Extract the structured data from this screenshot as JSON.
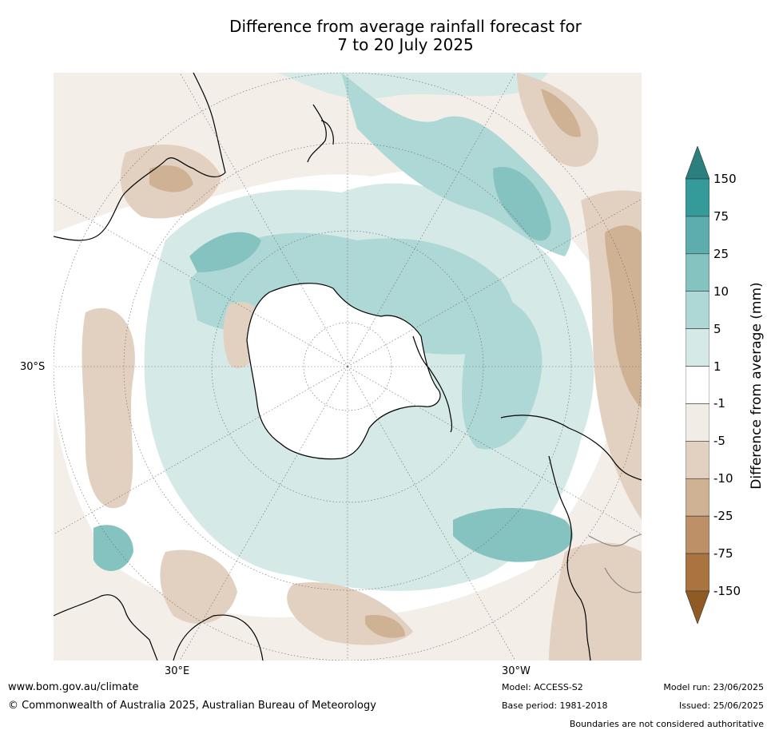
{
  "title": "Difference from average rainfall forecast for\n7 to 20 July 2025",
  "map": {
    "projection": "south polar stereographic",
    "labels": {
      "lat_30s": "30°S",
      "lon_30e": "30°E",
      "lon_30w": "30°W"
    }
  },
  "legend": {
    "title": "Difference from average (mm)",
    "ticks": [
      "150",
      "75",
      "25",
      "10",
      "5",
      "1",
      "-1",
      "-5",
      "-10",
      "-25",
      "-75",
      "-150"
    ],
    "colors": [
      "#2a7f7f",
      "#359a9a",
      "#5eadad",
      "#85c3c1",
      "#aed8d6",
      "#d5e9e7",
      "#ffffff",
      "#f2ece6",
      "#e2d1c0",
      "#cfb193",
      "#bd9068",
      "#aa7441",
      "#8f5a23"
    ]
  },
  "footer": {
    "url": "www.bom.gov.au/climate",
    "copyright": "© Commonwealth of Australia 2025, Australian Bureau of Meteorology",
    "model": "Model: ACCESS-S2",
    "base_period": "Base period: 1981-2018",
    "model_run": "Model run: 23/06/2025",
    "issued": "Issued: 25/06/2025",
    "disclaimer": "Boundaries are not considered authoritative"
  }
}
